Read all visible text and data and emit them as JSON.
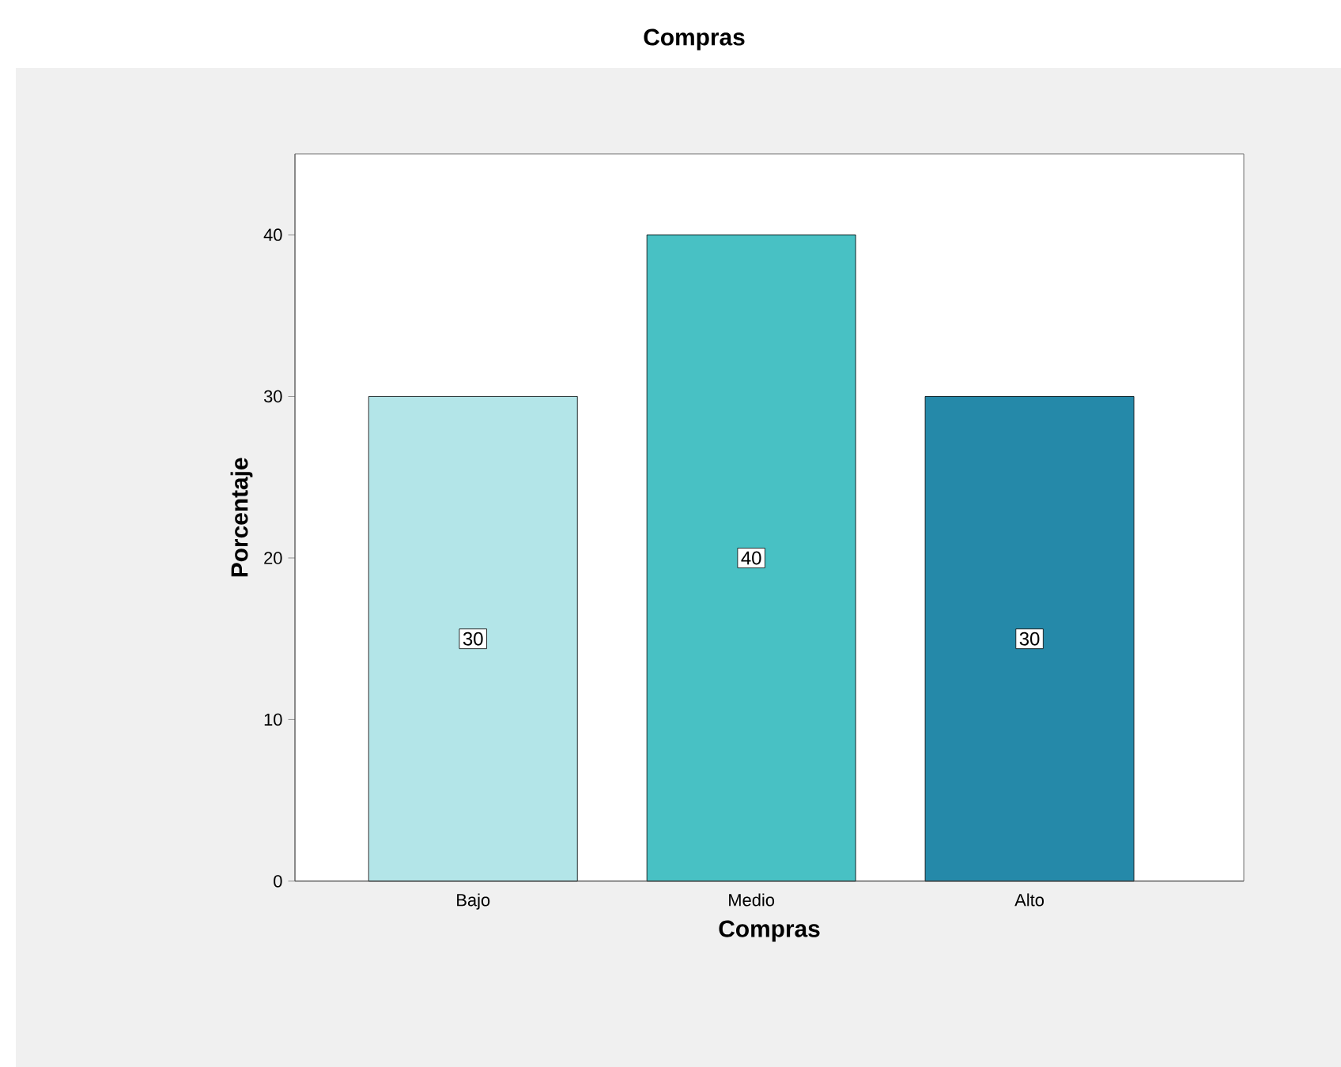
{
  "chart_data": {
    "type": "bar",
    "title": "Compras",
    "xlabel": "Compras",
    "ylabel": "Porcentaje",
    "categories": [
      "Bajo",
      "Medio",
      "Alto"
    ],
    "values": [
      30,
      40,
      30
    ],
    "colors": [
      "#b3e5e8",
      "#48c1c4",
      "#2589a9"
    ],
    "ylim": [
      0,
      45
    ],
    "yticks": [
      0,
      10,
      20,
      30,
      40
    ],
    "data_labels": true
  }
}
